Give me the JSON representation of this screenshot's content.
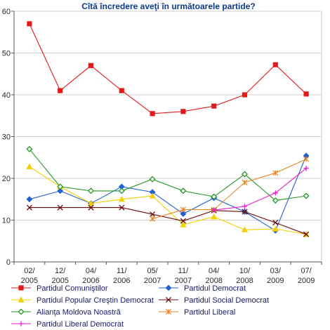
{
  "chart_data": {
    "type": "line",
    "title": "Cîtă încredere aveţi în următoarele partide?",
    "xlabel": "",
    "ylabel": "",
    "ylim": [
      0,
      60
    ],
    "yticks": [
      "0",
      "10",
      "20",
      "30",
      "40",
      "50",
      "60"
    ],
    "x_labels": [
      [
        "02/",
        "2005"
      ],
      [
        "12/",
        "2005"
      ],
      [
        "04/",
        "2006"
      ],
      [
        "11/",
        "2006"
      ],
      [
        "05/",
        "2007"
      ],
      [
        "11/",
        "2007"
      ],
      [
        "04/",
        "2008"
      ],
      [
        "10/",
        "2008"
      ],
      [
        "03/",
        "2009"
      ],
      [
        "07/",
        "2009"
      ]
    ],
    "grid": true,
    "legend_position": "bottom",
    "series": [
      {
        "name": "Partidul Comuniştilor",
        "color": "#e31a1c",
        "marker": "square",
        "values": [
          57,
          41,
          47,
          41,
          35.5,
          36,
          37.3,
          40,
          47.2,
          40.2
        ]
      },
      {
        "name": "Partidul Democrat",
        "color": "#1f5fd6",
        "marker": "diamond",
        "values": [
          15,
          17,
          14,
          18,
          16.7,
          11.5,
          15.3,
          12,
          7.5,
          25.4
        ]
      },
      {
        "name": "Partidul Popular Creştin Democrat",
        "color": "#f2d000",
        "marker": "triangle",
        "values": [
          22.8,
          18,
          14,
          15,
          15.8,
          8.9,
          10.8,
          7.7,
          7.9,
          6.6
        ]
      },
      {
        "name": "Partidul Social Democrat",
        "color": "#6b0a0a",
        "marker": "x",
        "values": [
          13,
          13,
          13,
          13,
          11.4,
          9.8,
          12.3,
          12,
          9.4,
          6.6
        ]
      },
      {
        "name": "Alianţa Moldova Noastră",
        "color": "#229922",
        "marker": "circle-diamond",
        "values": [
          27,
          18,
          17,
          17,
          19.8,
          17,
          15.6,
          21,
          14.7,
          15.8
        ]
      },
      {
        "name": "Partidul Liberal",
        "color": "#e8872b",
        "marker": "star",
        "values": [
          null,
          null,
          null,
          null,
          10.3,
          12.5,
          12.5,
          19,
          21.3,
          24.6
        ]
      },
      {
        "name": "Partidul Liberal Democrat",
        "color": "#e81ad1",
        "marker": "plus",
        "values": [
          null,
          null,
          null,
          null,
          null,
          null,
          12.4,
          13.3,
          16.5,
          22.4
        ]
      }
    ]
  }
}
